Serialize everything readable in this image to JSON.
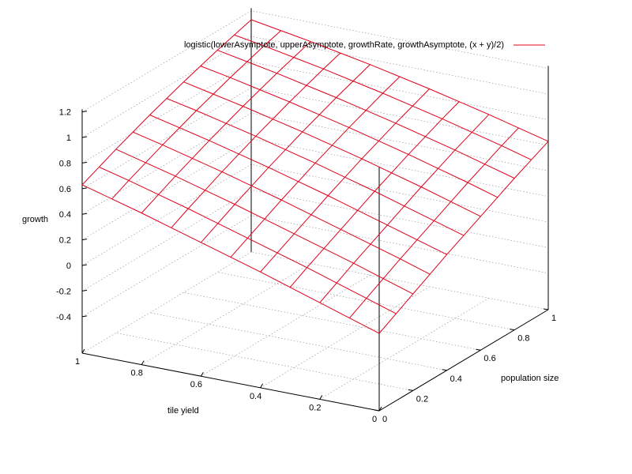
{
  "chart_data": {
    "type": "surface3d",
    "title": "",
    "legend": {
      "label": "logistic(lowerAsymptote, upperAsymptote, growthRate, growthAsymptote, (x + y)/2)",
      "color": "#e0001a",
      "placement": "top-right"
    },
    "xlabel": "tile yield",
    "ylabel": "population size",
    "zlabel": "growth",
    "x_ticks": [
      "0",
      "0.2",
      "0.4",
      "0.6",
      "0.8",
      "1"
    ],
    "y_ticks": [
      "0",
      "0.2",
      "0.4",
      "0.6",
      "0.8",
      "1"
    ],
    "z_ticks": [
      "-0.4",
      "-0.2",
      "0",
      "0.2",
      "0.4",
      "0.6",
      "0.8",
      "1",
      "1.2"
    ],
    "xlim": [
      0,
      1
    ],
    "ylim": [
      0,
      1
    ],
    "zlim": [
      -0.4,
      1.2
    ],
    "grid": true,
    "surface_color": "#e0001a",
    "grid_x": [
      0,
      0.1,
      0.2,
      0.3,
      0.4,
      0.5,
      0.6,
      0.7,
      0.8,
      0.9,
      1
    ],
    "grid_y": [
      0,
      0.1,
      0.2,
      0.3,
      0.4,
      0.5,
      0.6,
      0.7,
      0.8,
      0.9,
      1
    ],
    "z_model": {
      "description": "z at (x,y) is the value at t=(x+y)/2, sampled from the surface",
      "t": [
        0,
        0.1,
        0.2,
        0.3,
        0.4,
        0.5,
        0.6,
        0.7,
        0.8,
        0.9,
        1.0
      ],
      "z": [
        -0.08,
        0.07,
        0.22,
        0.36,
        0.5,
        0.63,
        0.75,
        0.86,
        0.96,
        1.05,
        1.13
      ]
    }
  }
}
